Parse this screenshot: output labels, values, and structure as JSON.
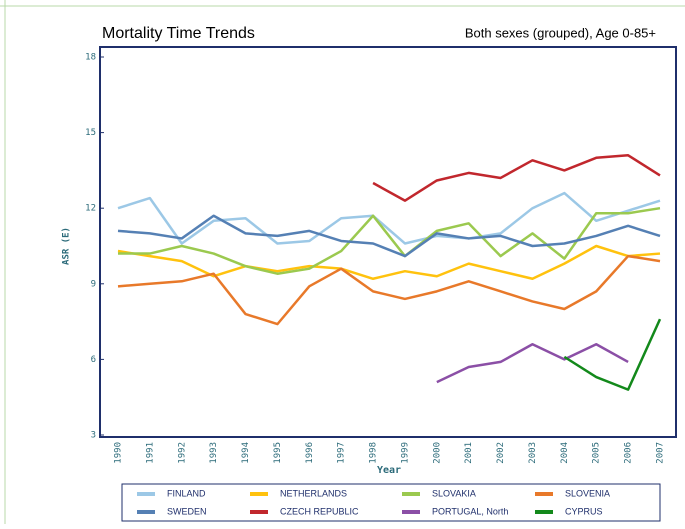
{
  "chart_data": {
    "type": "line",
    "title": "Mortality Time Trends",
    "subtitle": "Both sexes (grouped), Age 0-85+",
    "x_label": "Year",
    "y_label": "ASR (E)",
    "categories": [
      "1990",
      "1991",
      "1992",
      "1993",
      "1994",
      "1995",
      "1996",
      "1997",
      "1998",
      "1999",
      "2000",
      "2001",
      "2002",
      "2003",
      "2004",
      "2005",
      "2006",
      "2007"
    ],
    "ylim": [
      3,
      18
    ],
    "yticks": [
      3,
      6,
      9,
      12,
      15,
      18
    ],
    "series": [
      {
        "name": "FINLAND",
        "color": "#9cc8e6",
        "values": [
          12.0,
          12.4,
          10.6,
          11.5,
          11.6,
          10.6,
          10.7,
          11.6,
          11.7,
          10.6,
          10.9,
          10.8,
          11.0,
          12.0,
          12.6,
          11.5,
          11.9,
          12.3
        ]
      },
      {
        "name": "NETHERLANDS",
        "color": "#ffc20e",
        "values": [
          10.3,
          10.1,
          9.9,
          9.3,
          9.7,
          9.5,
          9.7,
          9.6,
          9.2,
          9.5,
          9.3,
          9.8,
          9.5,
          9.2,
          9.8,
          10.5,
          10.1,
          10.2
        ]
      },
      {
        "name": "SLOVAKIA",
        "color": "#9bc94f",
        "values": [
          10.2,
          10.2,
          10.5,
          10.2,
          9.7,
          9.4,
          9.6,
          10.3,
          11.7,
          10.1,
          11.1,
          11.4,
          10.1,
          11.0,
          10.0,
          11.8,
          11.8,
          12.0
        ]
      },
      {
        "name": "SLOVENIA",
        "color": "#e8792a",
        "values": [
          8.9,
          9.0,
          9.1,
          9.4,
          7.8,
          7.4,
          8.9,
          9.6,
          8.7,
          8.4,
          8.7,
          9.1,
          8.7,
          8.3,
          8.0,
          8.7,
          10.1,
          9.9
        ]
      },
      {
        "name": "SWEDEN",
        "color": "#5580b4",
        "values": [
          11.1,
          11.0,
          10.8,
          11.7,
          11.0,
          10.9,
          11.1,
          10.7,
          10.6,
          10.1,
          11.0,
          10.8,
          10.9,
          10.5,
          10.6,
          10.9,
          11.3,
          10.9
        ]
      },
      {
        "name": "CZECH REPUBLIC",
        "color": "#c1272d",
        "values": [
          null,
          null,
          null,
          null,
          null,
          null,
          null,
          null,
          13.0,
          12.3,
          13.1,
          13.4,
          13.2,
          13.9,
          13.5,
          14.0,
          14.1,
          13.3
        ]
      },
      {
        "name": "PORTUGAL, North",
        "color": "#8b4fa6",
        "values": [
          null,
          null,
          null,
          null,
          null,
          null,
          null,
          null,
          null,
          null,
          5.1,
          5.7,
          5.9,
          6.6,
          6.0,
          6.6,
          5.9,
          null
        ]
      },
      {
        "name": "CYPRUS",
        "color": "#13891b",
        "values": [
          null,
          null,
          null,
          null,
          null,
          null,
          null,
          null,
          null,
          null,
          null,
          null,
          null,
          null,
          6.1,
          5.3,
          4.8,
          7.6
        ]
      }
    ]
  }
}
